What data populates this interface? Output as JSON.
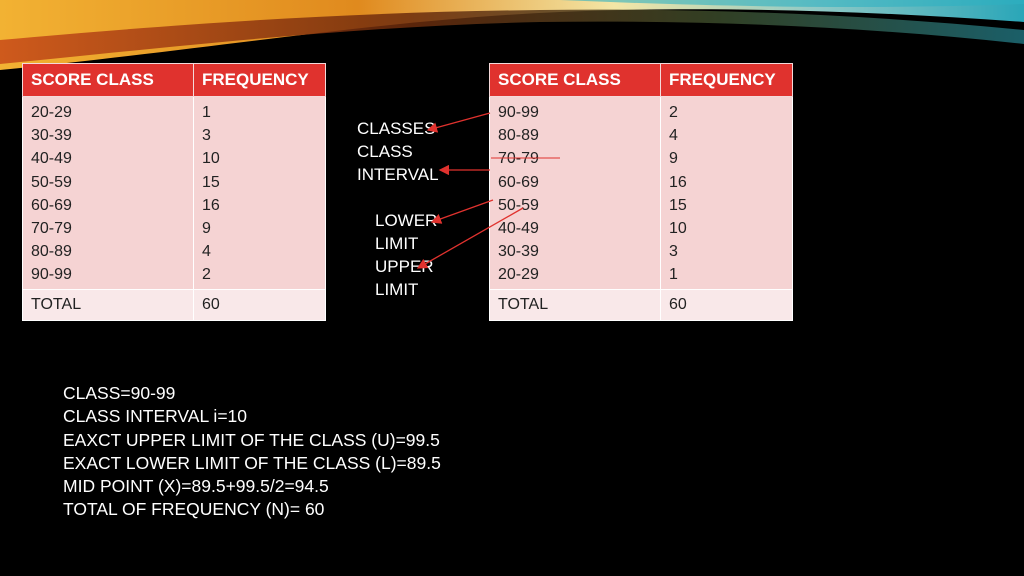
{
  "table_left": {
    "headers": [
      "SCORE CLASS",
      "FREQUENCY"
    ],
    "classes": [
      "20-29",
      "30-39",
      "40-49",
      "50-59",
      "60-69",
      "70-79",
      "80-89",
      "90-99"
    ],
    "frequencies": [
      "1",
      "3",
      "10",
      "15",
      "16",
      "9",
      "4",
      "2"
    ],
    "total_label": "TOTAL",
    "total_value": "60"
  },
  "table_right": {
    "headers": [
      "SCORE CLASS",
      "FREQUENCY"
    ],
    "classes": [
      "90-99",
      "80-89",
      "70-79",
      "60-69",
      "50-59",
      "40-49",
      "30-39",
      "20-29"
    ],
    "frequencies": [
      "2",
      "4",
      "9",
      "16",
      "15",
      "10",
      "3",
      "1"
    ],
    "total_label": "TOTAL",
    "total_value": "60"
  },
  "labels": {
    "classes": "CLASSES",
    "class": "CLASS",
    "interval": "INTERVAL",
    "lower": "LOWER",
    "lower_limit": "LIMIT",
    "upper": "UPPER",
    "upper_limit": "LIMIT"
  },
  "notes": [
    "CLASS=90-99",
    "CLASS INTERVAL i=10",
    "EAXCT UPPER LIMIT OF THE CLASS (U)=99.5",
    "EXACT LOWER LIMIT OF THE CLASS (L)=89.5",
    "MID POINT (X)=89.5+99.5/2=94.5",
    "TOTAL OF FREQUENCY (N)= 60"
  ],
  "colors": {
    "header": "#e0322e",
    "row_fill": "#f5d3d3",
    "total_fill": "#f9e8e9",
    "arrow": "#e0322e"
  }
}
